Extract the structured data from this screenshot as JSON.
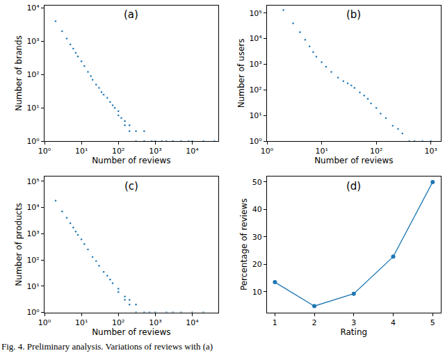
{
  "caption": "Fig. 4. Preliminary analysis. Variations of reviews with (a)",
  "chart_data": [
    {
      "type": "scatter",
      "title": "(a)",
      "x_label": "Number of reviews",
      "y_label": "Number of brands",
      "log": true,
      "color": "#1f77b4",
      "marker": "dot",
      "x": [
        2,
        3,
        4,
        5,
        6,
        7,
        8,
        10,
        12,
        15,
        18,
        20,
        25,
        30,
        35,
        40,
        50,
        60,
        70,
        80,
        100,
        100,
        120,
        150,
        150,
        200,
        200,
        300,
        300,
        500,
        500,
        800,
        1000,
        1500,
        2000,
        3000,
        5000,
        8000,
        10000,
        20000,
        40000
      ],
      "values": [
        4000,
        2000,
        1200,
        800,
        600,
        450,
        350,
        250,
        180,
        120,
        90,
        70,
        50,
        40,
        30,
        25,
        20,
        15,
        12,
        10,
        8,
        6,
        5,
        4,
        3,
        3,
        2,
        2,
        1,
        2,
        1,
        1,
        1,
        1,
        1,
        1,
        1,
        1,
        1,
        1,
        1
      ],
      "xlim": [
        1,
        50000
      ],
      "ylim": [
        1,
        12000
      ],
      "xticks": [
        {
          "value": 1,
          "label": "10⁰"
        },
        {
          "value": 10,
          "label": "10¹"
        },
        {
          "value": 100,
          "label": "10²"
        },
        {
          "value": 1000,
          "label": "10³"
        },
        {
          "value": 10000,
          "label": "10⁴"
        }
      ],
      "yticks": [
        {
          "value": 1,
          "label": "10⁰"
        },
        {
          "value": 10,
          "label": "10¹"
        },
        {
          "value": 100,
          "label": "10²"
        },
        {
          "value": 1000,
          "label": "10³"
        },
        {
          "value": 10000,
          "label": "10⁴"
        }
      ]
    },
    {
      "type": "scatter",
      "title": "(b)",
      "x_label": "Number of reviews",
      "y_label": "Number of users",
      "log": true,
      "color": "#1f77b4",
      "marker": "dot",
      "x": [
        2,
        3,
        4,
        5,
        6,
        7,
        8,
        10,
        12,
        15,
        20,
        25,
        30,
        35,
        40,
        50,
        60,
        70,
        80,
        100,
        120,
        150,
        200,
        250,
        300,
        400,
        500,
        700,
        1000
      ],
      "values": [
        130000,
        40000,
        18000,
        9000,
        5000,
        3000,
        2000,
        1200,
        800,
        500,
        300,
        220,
        180,
        150,
        120,
        80,
        60,
        45,
        30,
        20,
        12,
        8,
        4,
        3,
        2,
        1,
        1,
        1,
        1
      ],
      "xlim": [
        1,
        1500
      ],
      "ylim": [
        1,
        200000
      ],
      "xticks": [
        {
          "value": 1,
          "label": "10⁰"
        },
        {
          "value": 10,
          "label": "10¹"
        },
        {
          "value": 100,
          "label": "10²"
        },
        {
          "value": 1000,
          "label": "10³"
        }
      ],
      "yticks": [
        {
          "value": 1,
          "label": "10⁰"
        },
        {
          "value": 10,
          "label": "10¹"
        },
        {
          "value": 100,
          "label": "10²"
        },
        {
          "value": 1000,
          "label": "10³"
        },
        {
          "value": 10000,
          "label": "10⁴"
        },
        {
          "value": 100000,
          "label": "10⁵"
        }
      ]
    },
    {
      "type": "scatter",
      "title": "(c)",
      "x_label": "Number of reviews",
      "y_label": "Number of products",
      "log": true,
      "color": "#1f77b4",
      "marker": "dot",
      "x": [
        2,
        3,
        4,
        5,
        6,
        7,
        8,
        10,
        12,
        15,
        20,
        25,
        30,
        40,
        50,
        60,
        70,
        100,
        100,
        150,
        150,
        200,
        200,
        300,
        300,
        500,
        700,
        1000,
        2000,
        3000,
        5000,
        10000,
        20000
      ],
      "values": [
        18000,
        7000,
        4000,
        2500,
        1700,
        1200,
        900,
        600,
        400,
        250,
        130,
        90,
        60,
        35,
        25,
        18,
        13,
        8,
        6,
        4,
        3,
        3,
        2,
        2,
        1,
        1,
        1,
        1,
        1,
        1,
        1,
        1,
        1
      ],
      "xlim": [
        1,
        50000
      ],
      "ylim": [
        1,
        150000
      ],
      "xticks": [
        {
          "value": 1,
          "label": "10⁰"
        },
        {
          "value": 10,
          "label": "10¹"
        },
        {
          "value": 100,
          "label": "10²"
        },
        {
          "value": 1000,
          "label": "10³"
        },
        {
          "value": 10000,
          "label": "10⁴"
        }
      ],
      "yticks": [
        {
          "value": 1,
          "label": "10⁰"
        },
        {
          "value": 10,
          "label": "10¹"
        },
        {
          "value": 100,
          "label": "10²"
        },
        {
          "value": 1000,
          "label": "10³"
        },
        {
          "value": 10000,
          "label": "10⁴"
        },
        {
          "value": 100000,
          "label": "10⁵"
        }
      ]
    },
    {
      "type": "line",
      "title": "(d)",
      "x_label": "Rating",
      "y_label": "Percentage of reviews",
      "color": "#1f77b4",
      "marker": "circle",
      "x": [
        1,
        2,
        3,
        4,
        5
      ],
      "values": [
        13.5,
        4.8,
        9.3,
        22.8,
        50
      ],
      "xlim": [
        0.8,
        5.2
      ],
      "ylim": [
        2.5,
        52
      ],
      "xticks": [
        1,
        2,
        3,
        4,
        5
      ],
      "yticks": [
        10,
        20,
        30,
        40,
        50
      ]
    }
  ]
}
